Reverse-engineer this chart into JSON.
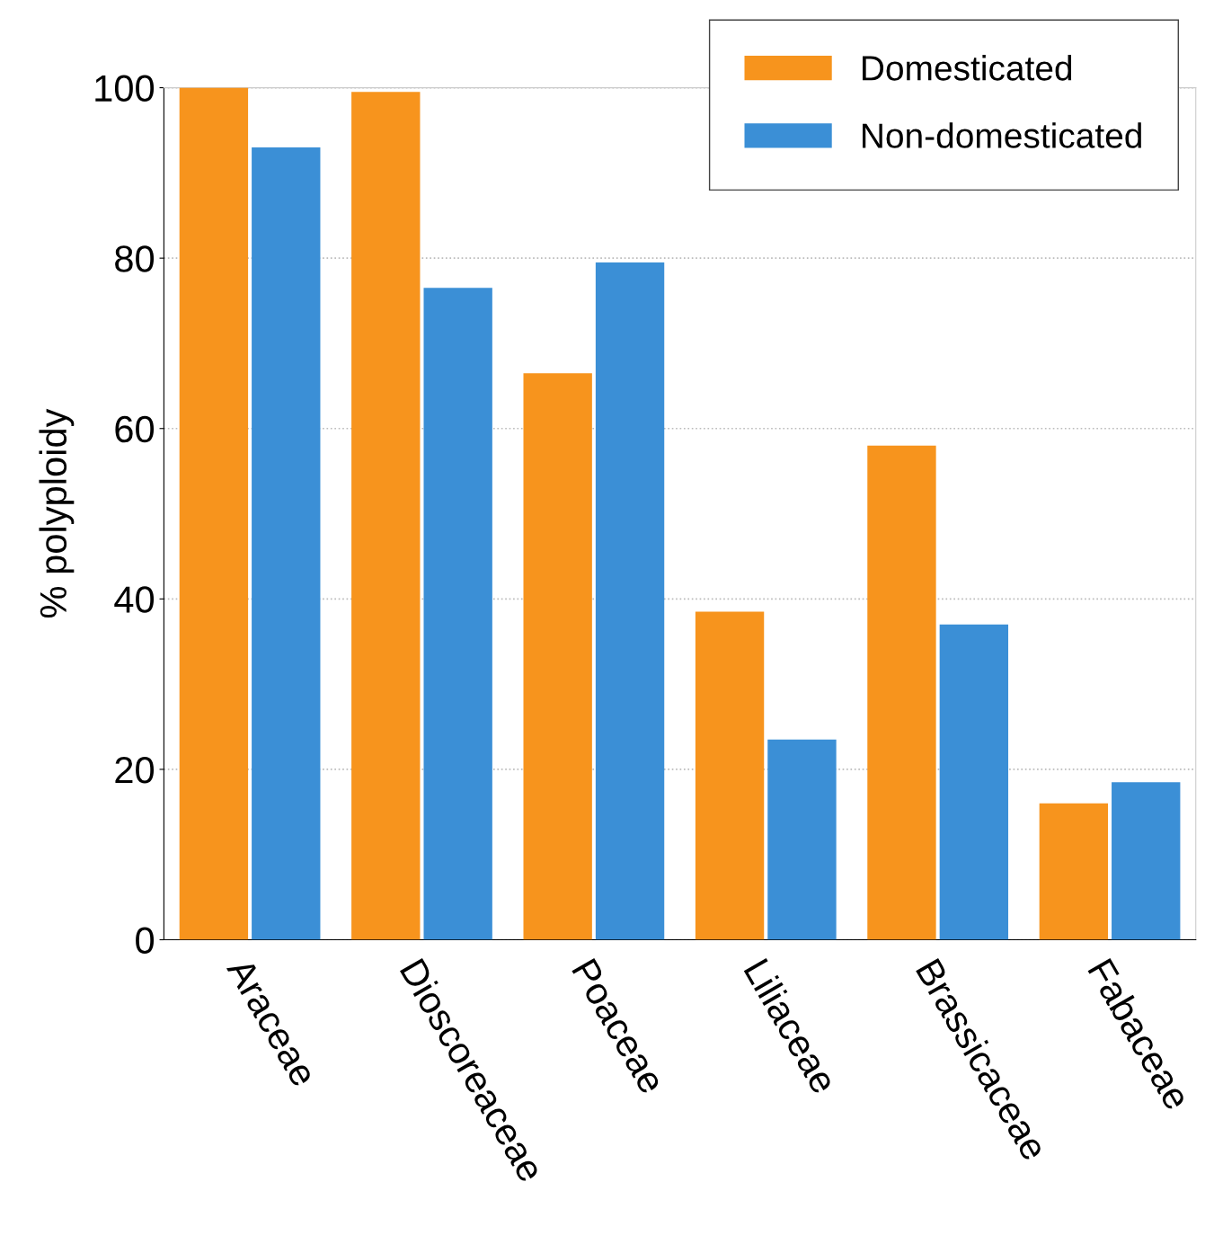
{
  "chart_data": {
    "type": "bar",
    "ylabel": "% polyploidy",
    "categories": [
      "Araceae",
      "Dioscoreaceae",
      "Poaceae",
      "Liliaceae",
      "Brassicaceae",
      "Fabaceae"
    ],
    "series": [
      {
        "name": "Domesticated",
        "color": "#f7941d",
        "values": [
          100,
          99.5,
          66.5,
          38.5,
          58,
          16
        ]
      },
      {
        "name": "Non-domesticated",
        "color": "#3b8fd6",
        "values": [
          93,
          76.5,
          79.5,
          23.5,
          37,
          18.5
        ]
      }
    ],
    "ylim": [
      0,
      100
    ],
    "yticks": [
      0,
      20,
      40,
      60,
      80,
      100
    ],
    "grid": "y",
    "legend": "top right"
  }
}
